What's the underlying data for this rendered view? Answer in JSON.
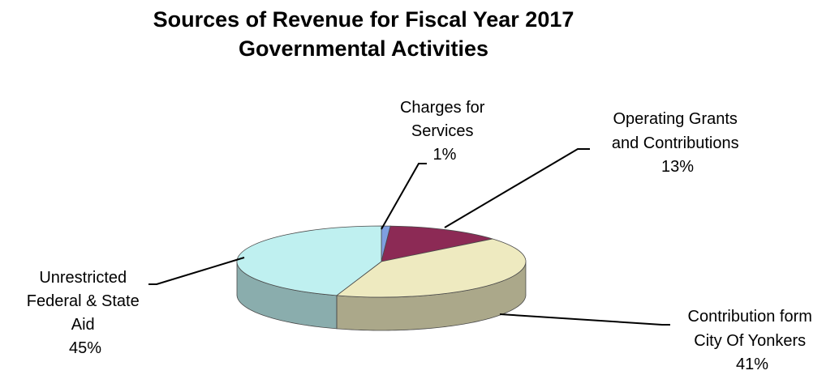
{
  "chart_data": {
    "type": "pie",
    "title": "Sources of Revenue for Fiscal Year 2017",
    "subtitle": "Governmental Activities",
    "three_d": true,
    "slices": [
      {
        "label_lines": [
          "Charges for",
          "Services"
        ],
        "value": 1,
        "display": "1%",
        "color": "#7f9fe0"
      },
      {
        "label_lines": [
          "Operating Grants",
          "and Contributions"
        ],
        "value": 13,
        "display": "13%",
        "color": "#8c2a55"
      },
      {
        "label_lines": [
          "Contribution form",
          "City Of Yonkers"
        ],
        "value": 41,
        "display": "41%",
        "color": "#eeeac0"
      },
      {
        "label_lines": [
          "Unrestricted",
          "Federal & State",
          "Aid"
        ],
        "value": 45,
        "display": "45%",
        "color": "#bff0f0"
      }
    ]
  }
}
